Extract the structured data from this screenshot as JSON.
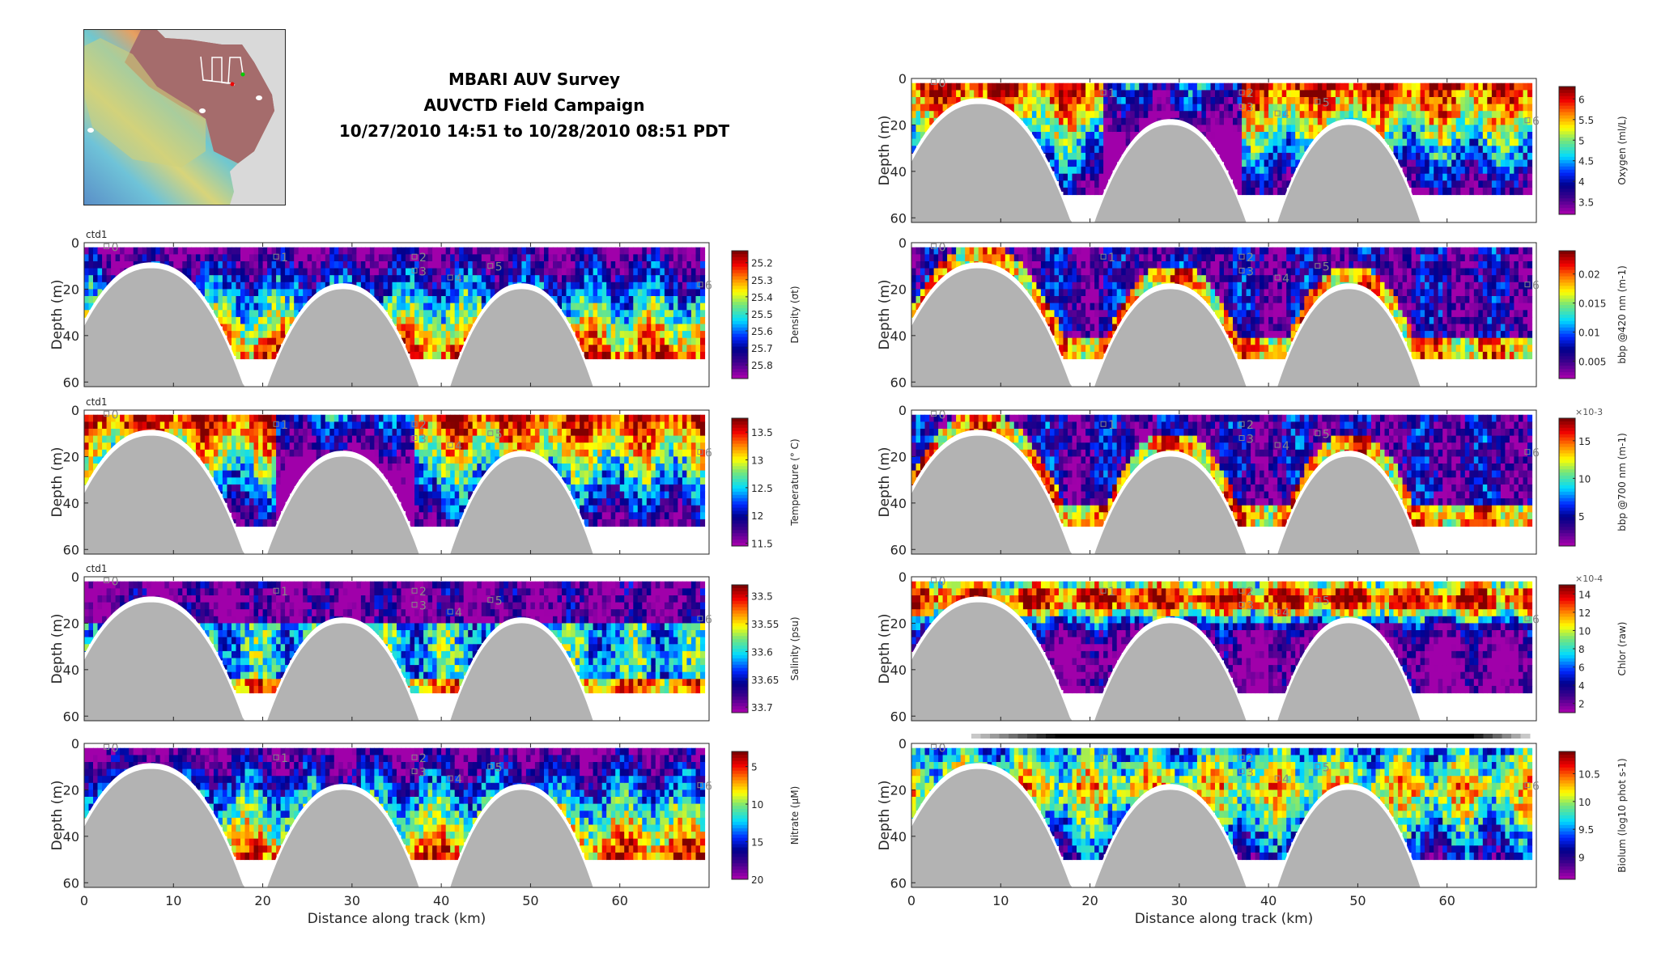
{
  "header": {
    "title_line1": "MBARI AUV Survey",
    "title_line2": "AUVCTD Field Campaign",
    "title_line3": "10/27/2010 14:51 to 10/28/2010 08:51 PDT"
  },
  "map": {
    "description_label": "survey-location-map",
    "track_start_color": "#00cc00",
    "track_end_color": "#ee0000"
  },
  "chart_data": [
    {
      "type": "heatmap",
      "panel": "left-1",
      "source_label": "ctd1",
      "ylabel": "Depth (m)",
      "xlabel": "",
      "xlim": [
        0,
        70
      ],
      "ylim": [
        60,
        0
      ],
      "yticks": [
        "0",
        "20",
        "40",
        "60"
      ],
      "xticks": [
        0,
        10,
        20,
        30,
        40,
        50,
        60
      ],
      "colorbar": {
        "label": "Density (σt)",
        "ticks": [
          "25.2",
          "25.3",
          "25.4",
          "25.5",
          "25.6",
          "25.7",
          "25.8"
        ],
        "range": [
          25.13,
          25.88
        ],
        "reversed": true
      },
      "markers": [
        "0",
        "1",
        "2",
        "3",
        "4",
        "5",
        "6"
      ]
    },
    {
      "type": "heatmap",
      "panel": "left-2",
      "source_label": "ctd1",
      "ylabel": "Depth (m)",
      "xlabel": "",
      "xlim": [
        0,
        70
      ],
      "ylim": [
        60,
        0
      ],
      "yticks": [
        "0",
        "20",
        "40",
        "60"
      ],
      "xticks": [
        0,
        10,
        20,
        30,
        40,
        50,
        60
      ],
      "colorbar": {
        "label": "Temperature (° C)",
        "ticks": [
          "13.5",
          "13",
          "12.5",
          "12",
          "11.5"
        ],
        "range": [
          11.45,
          13.75
        ],
        "reversed": false
      },
      "markers": [
        "0",
        "1",
        "2",
        "3",
        "4",
        "5",
        "6"
      ]
    },
    {
      "type": "heatmap",
      "panel": "left-3",
      "source_label": "ctd1",
      "ylabel": "Depth (m)",
      "xlabel": "",
      "xlim": [
        0,
        70
      ],
      "ylim": [
        60,
        0
      ],
      "yticks": [
        "0",
        "20",
        "40",
        "60"
      ],
      "xticks": [
        0,
        10,
        20,
        30,
        40,
        50,
        60
      ],
      "colorbar": {
        "label": "Salinity (psu)",
        "ticks": [
          "33.5",
          "33.55",
          "33.6",
          "33.65",
          "33.7"
        ],
        "range": [
          33.48,
          33.71
        ],
        "reversed": true
      },
      "markers": [
        "0",
        "1",
        "2",
        "3",
        "4",
        "5",
        "6"
      ]
    },
    {
      "type": "heatmap",
      "panel": "left-4",
      "source_label": "",
      "ylabel": "Depth (m)",
      "xlabel": "Distance along track (km)",
      "xlim": [
        0,
        70
      ],
      "ylim": [
        60,
        0
      ],
      "yticks": [
        "0",
        "20",
        "40",
        "60"
      ],
      "xticks": [
        0,
        10,
        20,
        30,
        40,
        50,
        60
      ],
      "colorbar": {
        "label": "Nitrate (μM)",
        "ticks": [
          "5",
          "10",
          "15",
          "20"
        ],
        "range": [
          3,
          20
        ],
        "reversed": true
      },
      "markers": [
        "0",
        "1",
        "2",
        "3",
        "4",
        "5",
        "6"
      ]
    },
    {
      "type": "heatmap",
      "panel": "right-1",
      "source_label": "",
      "ylabel": "Depth (m)",
      "xlabel": "",
      "xlim": [
        0,
        70
      ],
      "ylim": [
        60,
        0
      ],
      "yticks": [
        "0",
        "20",
        "40",
        "60"
      ],
      "xticks": [
        0,
        10,
        20,
        30,
        40,
        50,
        60
      ],
      "colorbar": {
        "label": "Oxygen (ml/L)",
        "ticks": [
          "6",
          "5.5",
          "5",
          "4.5",
          "4",
          "3.5"
        ],
        "range": [
          3.2,
          6.3
        ],
        "reversed": false
      },
      "markers": [
        "0",
        "1",
        "2",
        "3",
        "4",
        "5",
        "6"
      ]
    },
    {
      "type": "heatmap",
      "panel": "right-2",
      "source_label": "",
      "ylabel": "Depth (m)",
      "xlabel": "",
      "xlim": [
        0,
        70
      ],
      "ylim": [
        60,
        0
      ],
      "yticks": [
        "0",
        "20",
        "40",
        "60"
      ],
      "xticks": [
        0,
        10,
        20,
        30,
        40,
        50,
        60
      ],
      "colorbar": {
        "label": "bbp @420 nm (m-1)",
        "ticks": [
          "0.02",
          "0.015",
          "0.01",
          "0.005"
        ],
        "range": [
          0.002,
          0.024
        ],
        "reversed": false
      },
      "markers": [
        "0",
        "1",
        "2",
        "3",
        "4",
        "5",
        "6"
      ]
    },
    {
      "type": "heatmap",
      "panel": "right-3",
      "source_label": "",
      "ylabel": "Depth (m)",
      "xlabel": "",
      "xlim": [
        0,
        70
      ],
      "ylim": [
        60,
        0
      ],
      "yticks": [
        "0",
        "20",
        "40",
        "60"
      ],
      "xticks": [
        0,
        10,
        20,
        30,
        40,
        50,
        60
      ],
      "colorbar": {
        "label": "bbp @700 nm (m-1)",
        "exponent": "×10-3",
        "ticks": [
          "15",
          "10",
          "5"
        ],
        "range": [
          1,
          18
        ],
        "reversed": false
      },
      "markers": [
        "0",
        "1",
        "2",
        "3",
        "4",
        "5",
        "6"
      ]
    },
    {
      "type": "heatmap",
      "panel": "right-4",
      "source_label": "",
      "ylabel": "Depth (m)",
      "xlabel": "",
      "xlim": [
        0,
        70
      ],
      "ylim": [
        60,
        0
      ],
      "yticks": [
        "0",
        "20",
        "40",
        "60"
      ],
      "xticks": [
        0,
        10,
        20,
        30,
        40,
        50,
        60
      ],
      "colorbar": {
        "label": "Chlor (raw)",
        "exponent": "×10-4",
        "ticks": [
          "14",
          "12",
          "10",
          "8",
          "6",
          "4",
          "2"
        ],
        "range": [
          1,
          15
        ],
        "reversed": false
      },
      "markers": [
        "0",
        "1",
        "2",
        "3",
        "4",
        "5",
        "6"
      ]
    },
    {
      "type": "heatmap",
      "panel": "right-5",
      "source_label": "",
      "ylabel": "Depth (m)",
      "xlabel": "Distance along track (km)",
      "xlim": [
        0,
        70
      ],
      "ylim": [
        60,
        0
      ],
      "yticks": [
        "0",
        "20",
        "40",
        "60"
      ],
      "xticks": [
        0,
        10,
        20,
        30,
        40,
        50,
        60
      ],
      "colorbar": {
        "label": "Biolum (log10 phot s-1)",
        "ticks": [
          "10.5",
          "10",
          "9.5",
          "9"
        ],
        "range": [
          8.6,
          10.9
        ],
        "reversed": false
      },
      "markers": [
        "0",
        "1",
        "2",
        "3",
        "4",
        "5",
        "6"
      ]
    }
  ]
}
